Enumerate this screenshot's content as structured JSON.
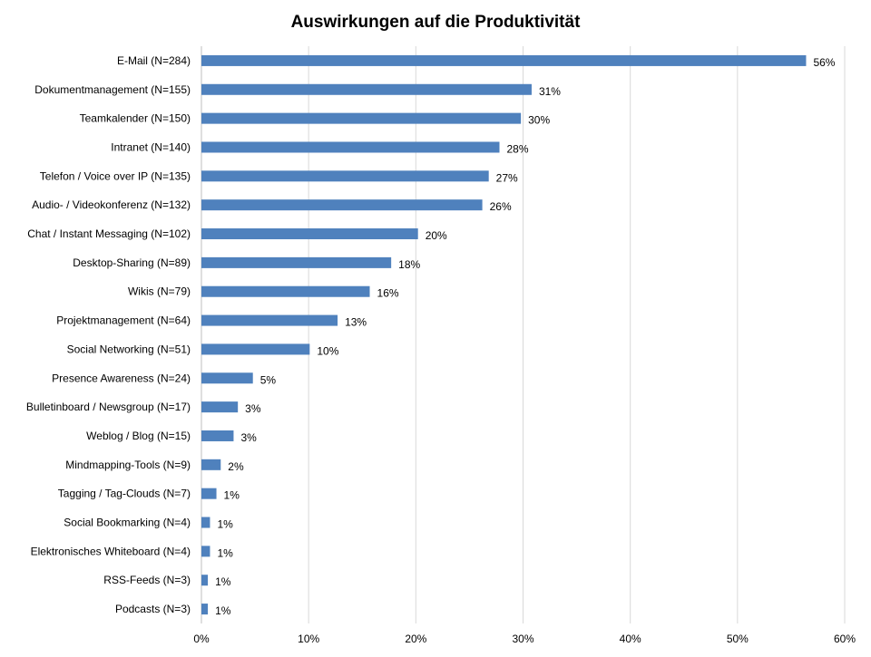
{
  "chart_data": {
    "type": "bar",
    "orientation": "horizontal",
    "title": "Auswirkungen auf die Produktivität",
    "xlabel": "",
    "ylabel": "",
    "xlim": [
      0,
      60
    ],
    "grid": true,
    "legend": "none",
    "x_ticks": [
      "0%",
      "10%",
      "20%",
      "30%",
      "40%",
      "50%",
      "60%"
    ],
    "bar_color": "#4f81bd",
    "categories": [
      "E-Mail (N=284)",
      "Dokumentmanagement (N=155)",
      "Teamkalender (N=150)",
      "Intranet (N=140)",
      "Telefon / Voice over IP (N=135)",
      "Audio- / Videokonferenz (N=132)",
      "Chat / Instant Messaging (N=102)",
      "Desktop-Sharing (N=89)",
      "Wikis (N=79)",
      "Projektmanagement (N=64)",
      "Social Networking (N=51)",
      "Presence Awareness (N=24)",
      "Bulletinboard / Newsgroup (N=17)",
      "Weblog / Blog (N=15)",
      "Mindmapping-Tools (N=9)",
      "Tagging / Tag-Clouds (N=7)",
      "Social Bookmarking (N=4)",
      "Elektronisches Whiteboard (N=4)",
      "RSS-Feeds (N=3)",
      "Podcasts (N=3)"
    ],
    "values": [
      56.4,
      30.8,
      29.8,
      27.8,
      26.8,
      26.2,
      20.2,
      17.7,
      15.7,
      12.7,
      10.1,
      4.8,
      3.4,
      3.0,
      1.8,
      1.4,
      0.8,
      0.8,
      0.6,
      0.6
    ],
    "data_labels": [
      "56%",
      "31%",
      "30%",
      "28%",
      "27%",
      "26%",
      "20%",
      "18%",
      "16%",
      "13%",
      "10%",
      "5%",
      "3%",
      "3%",
      "2%",
      "1%",
      "1%",
      "1%",
      "1%",
      "1%"
    ]
  }
}
